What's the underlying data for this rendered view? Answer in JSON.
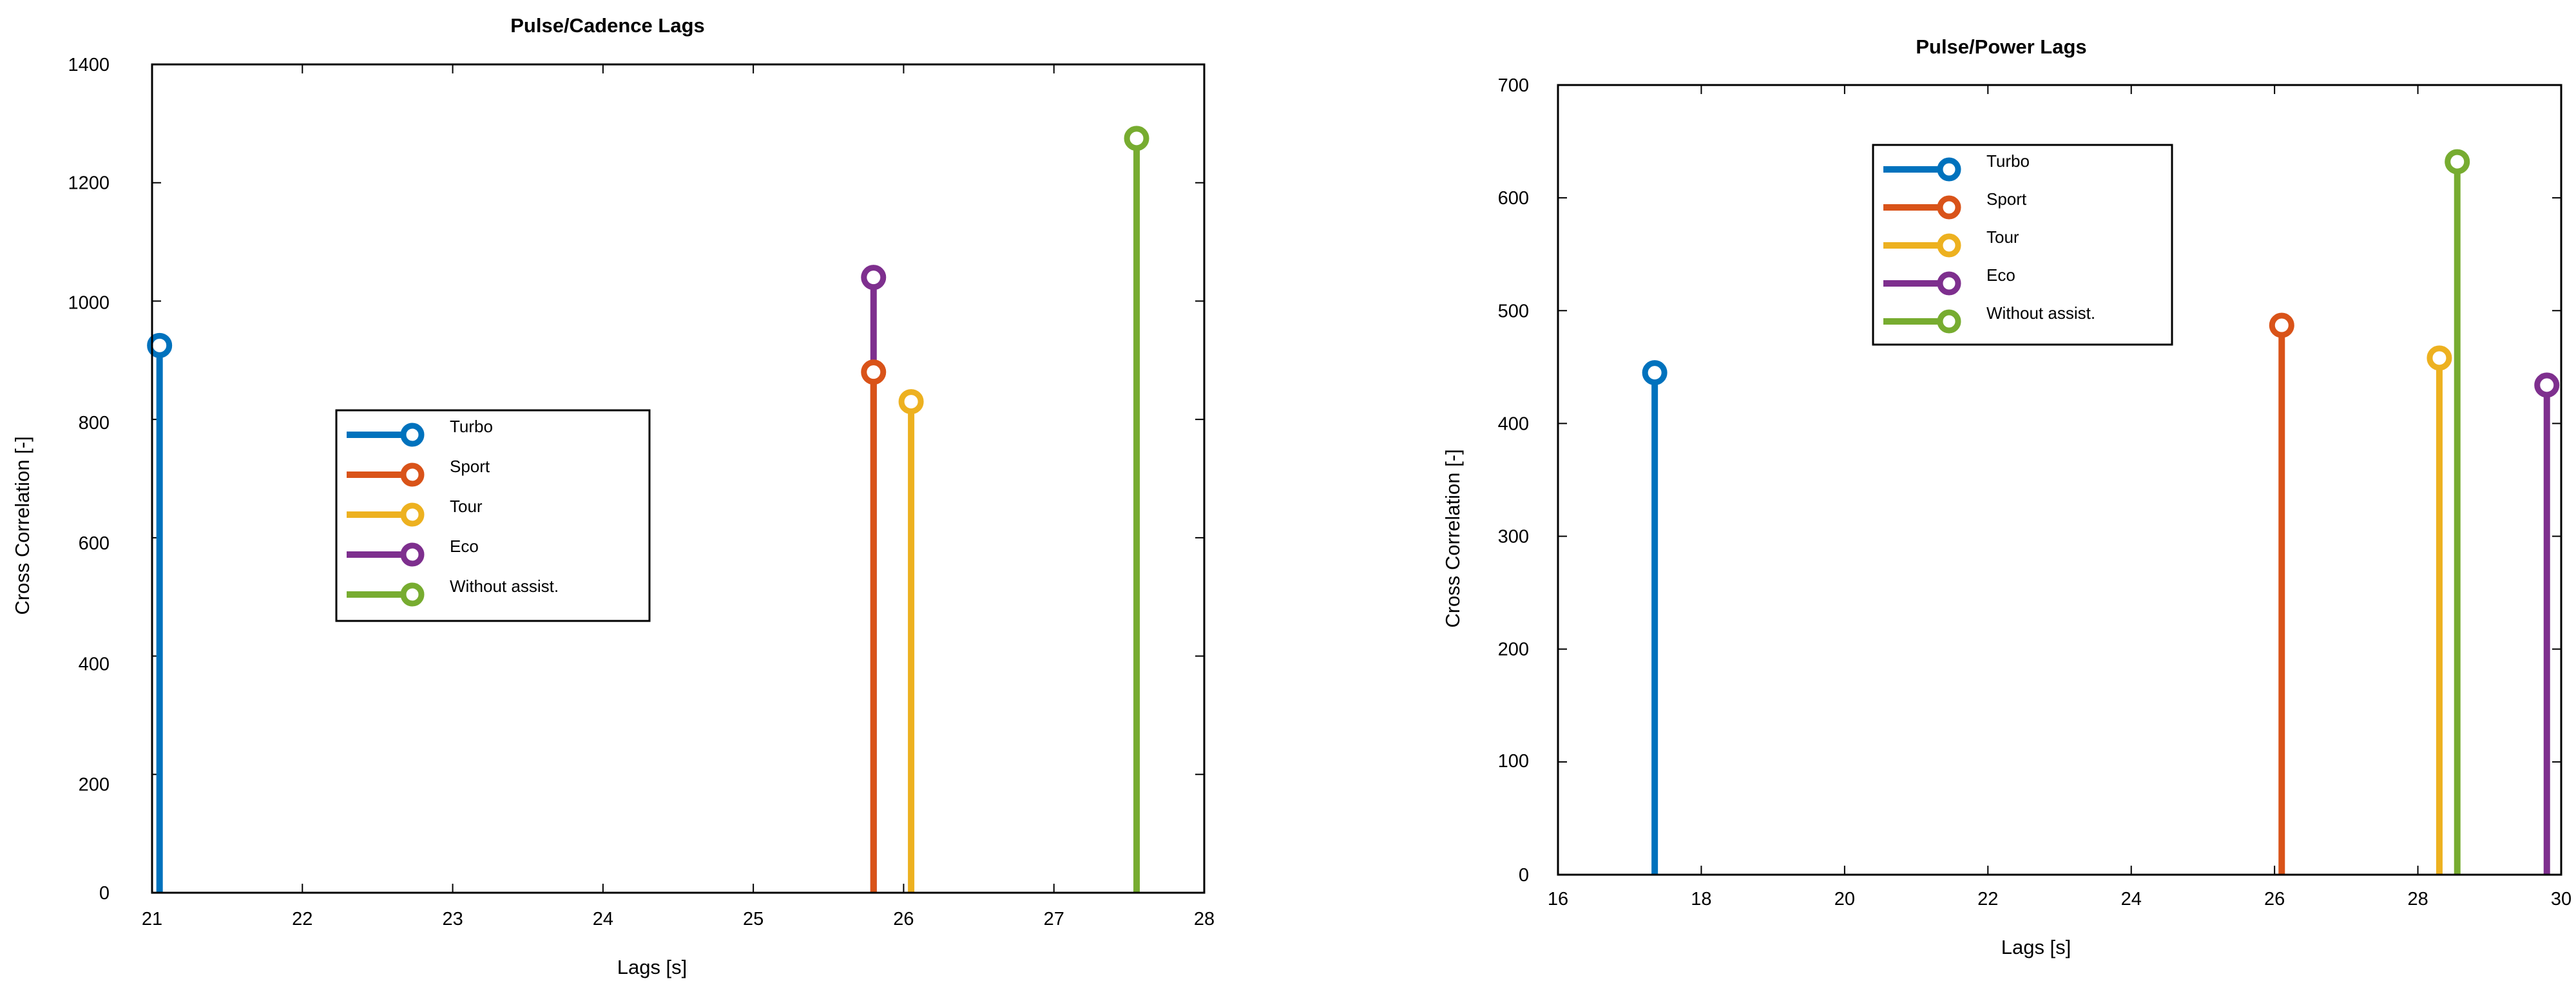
{
  "colors": {
    "Turbo": "#0072BD",
    "Sport": "#D95319",
    "Tour": "#EDB120",
    "Eco": "#7E2F8E",
    "Without assist.": "#77AC30"
  },
  "chart_data": [
    {
      "type": "stem",
      "title": "Pulse/Cadence Lags",
      "xlabel": "Lags [s]",
      "ylabel": "Cross Correlation [-]",
      "xlim": [
        21,
        28
      ],
      "ylim": [
        0,
        1400
      ],
      "xticks": [
        "21",
        "22",
        "23",
        "24",
        "25",
        "26",
        "27",
        "28"
      ],
      "yticks": [
        "0",
        "200",
        "400",
        "600",
        "800",
        "1000",
        "1200",
        "1400"
      ],
      "legend_placement": "center-left",
      "series": [
        {
          "name": "Turbo",
          "x": 21.05,
          "y": 925
        },
        {
          "name": "Sport",
          "x": 25.8,
          "y": 880
        },
        {
          "name": "Tour",
          "x": 26.05,
          "y": 830
        },
        {
          "name": "Eco",
          "x": 25.8,
          "y": 1040
        },
        {
          "name": "Without assist.",
          "x": 27.55,
          "y": 1275
        }
      ]
    },
    {
      "type": "stem",
      "title": "Pulse/Power Lags",
      "xlabel": "Lags [s]",
      "ylabel": "Cross Correlation [-]",
      "xlim": [
        16,
        30
      ],
      "ylim": [
        0,
        700
      ],
      "xticks": [
        "16",
        "18",
        "20",
        "22",
        "24",
        "26",
        "28",
        "30"
      ],
      "yticks": [
        "0",
        "100",
        "200",
        "300",
        "400",
        "500",
        "600",
        "700"
      ],
      "legend_placement": "top-center",
      "series": [
        {
          "name": "Turbo",
          "x": 17.35,
          "y": 445
        },
        {
          "name": "Sport",
          "x": 26.1,
          "y": 487
        },
        {
          "name": "Tour",
          "x": 28.3,
          "y": 458
        },
        {
          "name": "Eco",
          "x": 29.8,
          "y": 434
        },
        {
          "name": "Without assist.",
          "x": 28.55,
          "y": 632
        }
      ]
    }
  ]
}
